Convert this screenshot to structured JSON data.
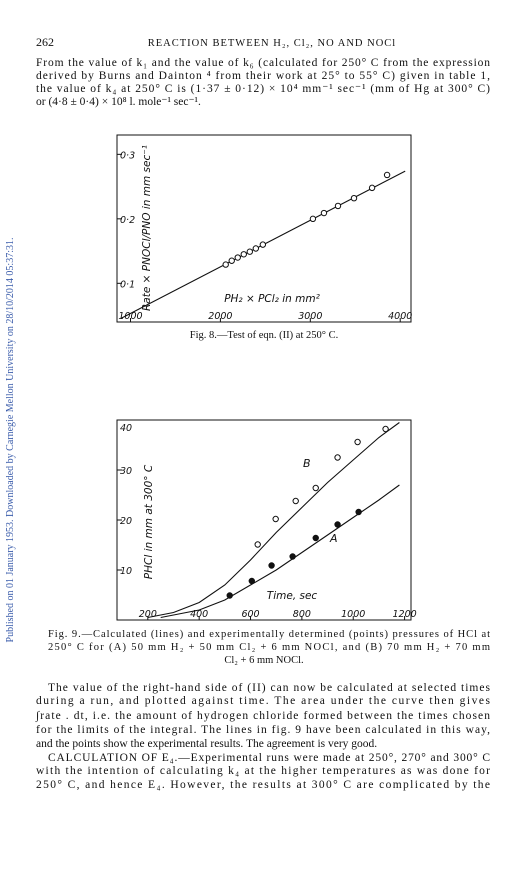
{
  "header": {
    "page": "262",
    "title": "REACTION BETWEEN H₂, Cl₂, NO AND NOCl"
  },
  "paragraph_1": [
    "From the value of k₁ and the value of k₆ (calculated for 250° C from the expression",
    "derived by Burns and Dainton ⁴ from their work at 25° to 55° C) given in table 1,",
    "the value of k₄ at 250° C is (1·37 ± 0·12) × 10⁴ mm⁻¹ sec⁻¹ (mm of Hg at 300° C)",
    "or (4·8 ± 0·4) × 10⁸ l. mole⁻¹ sec⁻¹."
  ],
  "chart_data": [
    {
      "type": "scatter",
      "caption": [
        "Fig. 8.—Test of eqn. (II) at 250° C."
      ],
      "xlabel": "PH₂ × PCl₂ in mm²",
      "ylabel": "Rate × PNOCl/PNO in mm sec⁻¹",
      "xlim": [
        850,
        4120
      ],
      "ylim": [
        0.04,
        0.33
      ],
      "xticks": [
        1000,
        2000,
        3000,
        4000
      ],
      "yticks": [
        {
          "value": 0.1,
          "label": "0·1"
        },
        {
          "value": 0.2,
          "label": "0·2"
        },
        {
          "value": 0.3,
          "label": "0·3"
        }
      ],
      "series": [
        {
          "type": "line",
          "color": "#111",
          "x": [
            900,
            4055
          ],
          "values": [
            0.046,
            0.274
          ]
        },
        {
          "type": "scatter",
          "color": "#111",
          "fill": "#fff",
          "x": [
            2059,
            2126,
            2193,
            2260,
            2327,
            2394,
            2472,
            3029,
            3152,
            3308,
            3486,
            3687,
            3854
          ],
          "values": [
            0.129,
            0.135,
            0.14,
            0.145,
            0.149,
            0.154,
            0.16,
            0.2,
            0.209,
            0.22,
            0.232,
            0.248,
            0.268
          ]
        }
      ]
    },
    {
      "type": "scatter",
      "caption": [
        "Fig. 9.—Calculated (lines) and experimentally determined (points) pressures of HCl at",
        "250° C for (A) 50 mm H₂ + 50 mm Cl₂ + 6 mm NOCl, and (B) 70 mm H₂ + 70 mm",
        "Cl₂ + 6 mm NOCl."
      ],
      "xlabel": "Time, sec",
      "ylabel": "PHCl in mm at 300° C",
      "xlim": [
        80,
        1225
      ],
      "ylim": [
        0,
        40
      ],
      "xticks": [
        200,
        400,
        600,
        800,
        1000,
        1200
      ],
      "yticks": [
        10,
        20,
        30,
        40
      ],
      "series": [
        {
          "type": "line",
          "name": "B",
          "color": "#111",
          "x": [
            200,
            300,
            400,
            500,
            600,
            700,
            800,
            900,
            1000,
            1100,
            1180
          ],
          "values": [
            0.5,
            1.5,
            3.5,
            7,
            12,
            17.5,
            22.5,
            27.5,
            32,
            36.5,
            39.5
          ]
        },
        {
          "type": "line",
          "name": "A",
          "color": "#111",
          "x": [
            250,
            400,
            500,
            600,
            700,
            800,
            900,
            1000,
            1100,
            1180
          ],
          "values": [
            0.5,
            2,
            4,
            7,
            10,
            13.5,
            17,
            20.5,
            24,
            27
          ]
        },
        {
          "type": "scatter",
          "color": "#111",
          "fill": "#fff",
          "x": [
            628,
            698,
            776,
            854,
            939,
            1017,
            1126
          ],
          "values": [
            15.1,
            20.2,
            23.8,
            26.4,
            32.5,
            35.6,
            38.2
          ]
        },
        {
          "type": "scatter",
          "color": "#111",
          "fill": "#111",
          "x": [
            519,
            605,
            682,
            764,
            854,
            939,
            1021
          ],
          "values": [
            4.9,
            7.8,
            10.9,
            12.7,
            16.4,
            19.1,
            21.6
          ]
        }
      ]
    }
  ],
  "body": [
    "The value of the right-hand side of (II) can now be calculated at selected times",
    "during a run, and plotted against time.  The area under the curve then gives",
    "∫rate . dt, i.e. the amount of hydrogen chloride formed between the times chosen",
    "for the limits of the integral.  The lines in fig. 9 have been calculated in this way,",
    "and the points show the experimental results.  The agreement is very good.",
    "CALCULATION OF E₄.—Experimental runs were made at 250°, 270° and 300° C",
    "with the intention of calculating k₄ at the higher temperatures as was done for",
    "250° C, and hence E₄.  However, the results at 300° C are complicated by the"
  ],
  "side_note": "Published on 01 January 1953. Downloaded by Carnegie Mellon University on 28/10/2014 05:37:31."
}
